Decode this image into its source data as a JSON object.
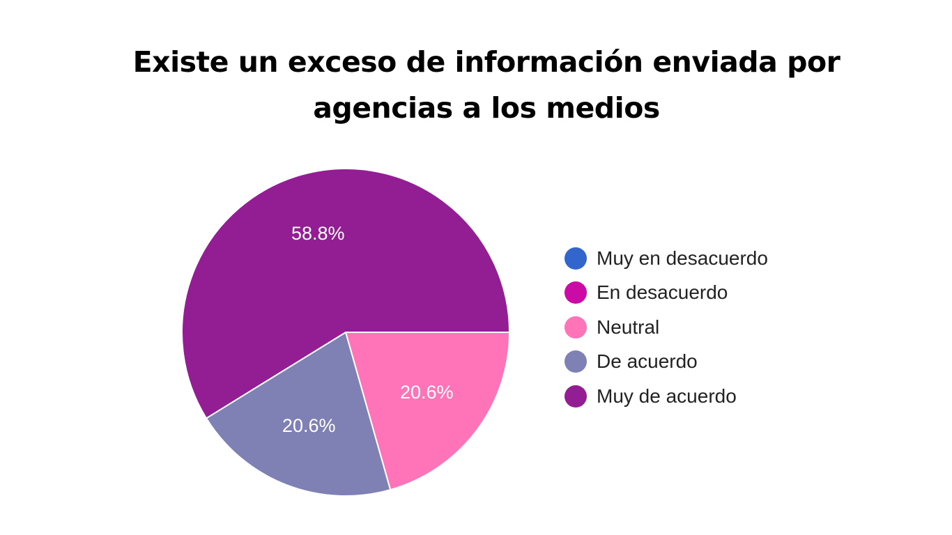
{
  "chart_data": {
    "type": "pie",
    "title": "Existe un exceso de información enviada por agencias a los medios",
    "categories": [
      "Muy en desacuerdo",
      "En desacuerdo",
      "Neutral",
      "De acuerdo",
      "Muy de acuerdo"
    ],
    "values": [
      0,
      0,
      20.6,
      20.6,
      58.8
    ],
    "value_labels": [
      "",
      "",
      "20.6%",
      "20.6%",
      "58.8%"
    ],
    "colors": [
      "#3366cc",
      "#cc0aa6",
      "#ff73b9",
      "#7f81b5",
      "#931e94"
    ],
    "legend_position": "right"
  }
}
